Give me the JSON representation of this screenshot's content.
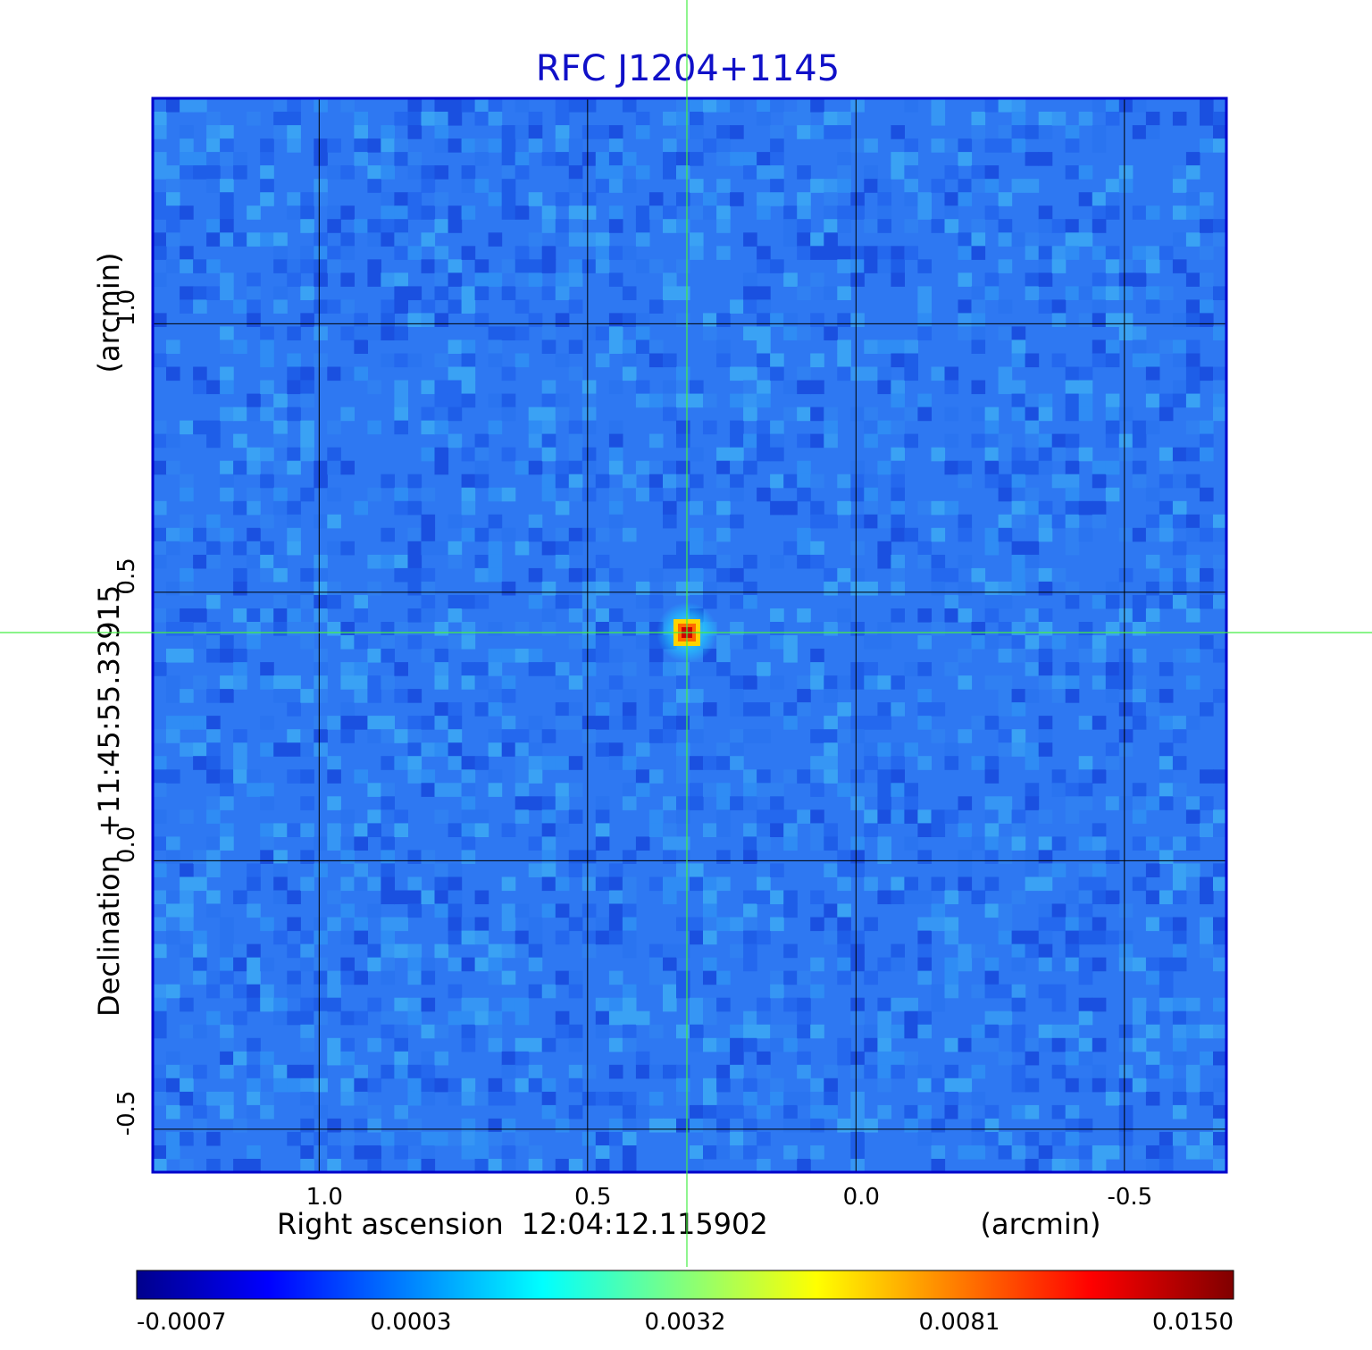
{
  "chart_data": {
    "type": "heatmap",
    "title": "RFC J1204+1145",
    "xlabel": {
      "prefix": "Right ascension",
      "value": "12:04:12.115902",
      "unit": "(arcmin)"
    },
    "ylabel": {
      "prefix": "Declination",
      "value": "+11:45:55.33915",
      "unit": "(arcmin)"
    },
    "xlim": [
      1.31,
      -0.69
    ],
    "ylim": [
      -0.58,
      1.42
    ],
    "xticks": [
      {
        "value": 1.0,
        "label": "1.0"
      },
      {
        "value": 0.5,
        "label": "0.5"
      },
      {
        "value": 0.0,
        "label": "0.0"
      },
      {
        "value": -0.5,
        "label": "-0.5"
      }
    ],
    "yticks": [
      {
        "value": 1.0,
        "label": "1.0"
      },
      {
        "value": 0.5,
        "label": "0.5"
      },
      {
        "value": 0.0,
        "label": "0.0"
      },
      {
        "value": -0.5,
        "label": "-0.5"
      }
    ],
    "grid": true,
    "crosshair": {
      "x": 0.315,
      "y": 0.425
    },
    "source_peak": {
      "x": 0.315,
      "y": 0.425,
      "value": 0.015
    },
    "colormap": "jet",
    "colorbar": {
      "placement": "bottom",
      "ticks": [
        {
          "value": -0.0007,
          "label": "-0.0007"
        },
        {
          "value": 0.0003,
          "label": "0.0003"
        },
        {
          "value": 0.0032,
          "label": "0.0032"
        },
        {
          "value": 0.0081,
          "label": "0.0081"
        },
        {
          "value": 0.015,
          "label": "0.0150"
        }
      ]
    }
  },
  "colors": {
    "title": "#1010c8",
    "frame": "#0000cc",
    "grid": "#000000",
    "crosshair": "#44ee44",
    "background_field": "#2e78f2",
    "jet_dark_blue": "#00008c",
    "jet_blue": "#0000ff",
    "jet_cyan": "#00ffff",
    "jet_yellow": "#ffff00",
    "jet_red": "#ff0000",
    "jet_dark_red": "#800000"
  }
}
